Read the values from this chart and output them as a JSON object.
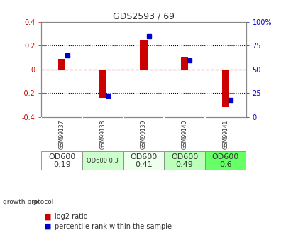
{
  "title": "GDS2593 / 69",
  "samples": [
    "GSM99137",
    "GSM99138",
    "GSM99139",
    "GSM99140",
    "GSM99141"
  ],
  "log2_ratio": [
    0.09,
    -0.24,
    0.25,
    0.11,
    -0.32
  ],
  "percentile_rank": [
    65,
    22,
    85,
    60,
    18
  ],
  "ylim_left": [
    -0.4,
    0.4
  ],
  "ylim_right": [
    0,
    100
  ],
  "bar_color_red": "#cc0000",
  "bar_color_blue": "#0000cc",
  "dotted_line_color": "#000000",
  "zero_line_color": "#dd4444",
  "growth_protocol": [
    "OD600\n0.19",
    "OD600 0.3",
    "OD600\n0.41",
    "OD600\n0.49",
    "OD600\n0.6"
  ],
  "cell_colors": [
    "#ffffff",
    "#ccffcc",
    "#eeffee",
    "#bbffbb",
    "#66ff66"
  ],
  "cell_fontsize": [
    8,
    6,
    8,
    8,
    8
  ],
  "header_color": "#cccccc",
  "title_color": "#333333",
  "left_axis_color": "#cc0000",
  "right_axis_color": "#0000cc",
  "background_color": "#ffffff"
}
